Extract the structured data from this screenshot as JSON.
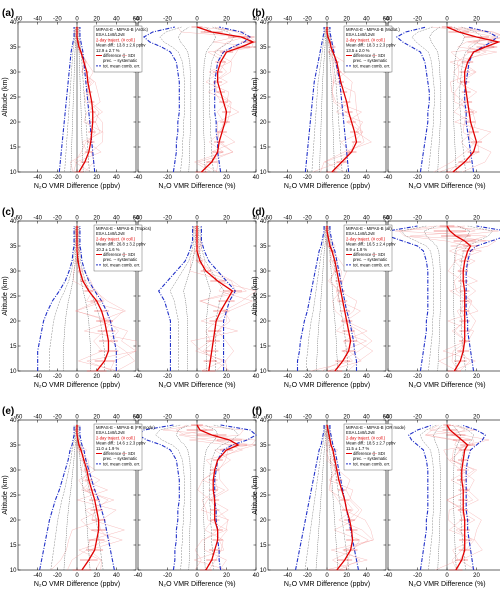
{
  "chart_data": [
    {
      "panel": "(a)",
      "type": "line",
      "legend": [
        "MIPAS-E - MIPAS-B (Arctic)",
        "ESA L1v8/L2v8",
        "2-day traject. (# coll.)",
        "Mean diff.: 13.8 ± 2.6 ppbv",
        "12.9 ± 2.7 %"
      ],
      "left": {
        "altitude": [
          10,
          12,
          14,
          16,
          18,
          20,
          22,
          24,
          26,
          28,
          30,
          32,
          34,
          35,
          36,
          37,
          38,
          39
        ],
        "difference": [
          2,
          8,
          12,
          14,
          15,
          16,
          16,
          15,
          13,
          11,
          10,
          7,
          4,
          2,
          1,
          0,
          0,
          0
        ],
        "tot_err": [
          18,
          17,
          16,
          15,
          14,
          13,
          12,
          11,
          10,
          9,
          8,
          7,
          6,
          5,
          4,
          3,
          3,
          3
        ]
      },
      "right": {
        "altitude": [
          10,
          12,
          14,
          16,
          18,
          20,
          22,
          24,
          26,
          28,
          30,
          32,
          34,
          35,
          36,
          37,
          38,
          39
        ],
        "difference": [
          3,
          10,
          14,
          15,
          17,
          19,
          20,
          18,
          16,
          14,
          14,
          16,
          20,
          30,
          38,
          30,
          10,
          0
        ],
        "tot_err": [
          16,
          15,
          14,
          14,
          13,
          13,
          12,
          12,
          12,
          12,
          13,
          14,
          18,
          24,
          32,
          36,
          30,
          15
        ]
      }
    },
    {
      "panel": "(b)",
      "type": "line",
      "legend": [
        "MIPAS-E - MIPAS-B (Midlat.)",
        "ESA L1v8/L2v8",
        "2-day traject. (# coll.)",
        "Mean diff.: 18.3 ± 2.3 ppbv",
        "13.5 ± 2.0 %"
      ],
      "left": {
        "altitude": [
          10,
          12,
          14,
          16,
          18,
          20,
          22,
          24,
          26,
          28,
          30,
          32,
          34,
          35,
          36,
          37,
          38,
          39
        ],
        "difference": [
          5,
          15,
          25,
          30,
          28,
          25,
          22,
          20,
          17,
          14,
          12,
          10,
          6,
          4,
          3,
          1,
          0,
          0
        ],
        "tot_err": [
          22,
          21,
          20,
          19,
          18,
          17,
          16,
          15,
          14,
          13,
          11,
          9,
          7,
          6,
          5,
          4,
          3,
          3
        ]
      },
      "right": {
        "altitude": [
          10,
          12,
          14,
          16,
          18,
          20,
          22,
          24,
          26,
          28,
          30,
          32,
          34,
          35,
          36,
          37,
          38,
          39
        ],
        "difference": [
          4,
          12,
          18,
          20,
          18,
          16,
          15,
          14,
          13,
          12,
          12,
          14,
          18,
          26,
          35,
          20,
          8,
          0
        ],
        "tot_err": [
          18,
          17,
          16,
          15,
          14,
          13,
          13,
          12,
          12,
          13,
          14,
          15,
          18,
          24,
          30,
          34,
          28,
          14
        ]
      }
    },
    {
      "panel": "(c)",
      "type": "line",
      "legend": [
        "MIPAS-E - MIPAS-B (Tropics)",
        "ESA L1v8/L2v8",
        "2-day traject. (# coll.)",
        "Mean diff.: 26.8 ± 3.2 ppbv",
        "10.3 ± 1.6 %"
      ],
      "left": {
        "altitude": [
          10,
          12,
          14,
          16,
          18,
          20,
          22,
          24,
          26,
          28,
          30,
          32,
          34,
          35,
          36,
          37,
          38,
          39
        ],
        "difference": [
          20,
          28,
          32,
          32,
          30,
          28,
          25,
          20,
          12,
          6,
          3,
          1,
          0,
          0,
          0,
          0,
          0,
          0
        ],
        "tot_err": [
          40,
          40,
          40,
          38,
          36,
          34,
          30,
          25,
          18,
          12,
          8,
          5,
          4,
          3,
          3,
          3,
          3,
          3
        ]
      },
      "right": {
        "altitude": [
          10,
          12,
          14,
          16,
          18,
          20,
          22,
          24,
          26,
          28,
          30,
          32,
          34,
          35,
          36,
          37,
          38,
          39
        ],
        "difference": [
          8,
          9,
          10,
          11,
          12,
          13,
          16,
          20,
          24,
          14,
          6,
          2,
          0,
          0,
          0,
          0,
          0,
          0
        ],
        "tot_err": [
          18,
          18,
          18,
          18,
          18,
          18,
          20,
          22,
          26,
          20,
          14,
          8,
          5,
          4,
          3,
          3,
          3,
          3
        ]
      }
    },
    {
      "panel": "(d)",
      "type": "line",
      "legend": [
        "MIPAS-E - MIPAS-B (all)",
        "ESA L1v8/L2v8",
        "2-day traject. (# coll.)",
        "Mean diff.: 16.5 ± 2.4 ppbv",
        "9.9 ± 1.8 %"
      ],
      "left": {
        "altitude": [
          10,
          12,
          14,
          16,
          18,
          20,
          22,
          24,
          26,
          28,
          30,
          32,
          34,
          35,
          36,
          37,
          38,
          39
        ],
        "difference": [
          8,
          16,
          22,
          24,
          22,
          20,
          18,
          16,
          14,
          12,
          10,
          8,
          5,
          3,
          2,
          1,
          0,
          0
        ],
        "tot_err": [
          30,
          30,
          28,
          27,
          25,
          23,
          20,
          18,
          16,
          14,
          12,
          10,
          8,
          6,
          5,
          4,
          3,
          3
        ]
      },
      "right": {
        "altitude": [
          10,
          12,
          14,
          16,
          18,
          20,
          22,
          24,
          26,
          28,
          30,
          32,
          34,
          35,
          36,
          37,
          38,
          39
        ],
        "difference": [
          5,
          9,
          11,
          12,
          12,
          12,
          12,
          12,
          12,
          11,
          11,
          12,
          14,
          16,
          12,
          6,
          2,
          0
        ],
        "tot_err": [
          18,
          17,
          16,
          15,
          14,
          14,
          13,
          13,
          13,
          13,
          13,
          14,
          16,
          20,
          30,
          40,
          44,
          20
        ]
      }
    },
    {
      "panel": "(e)",
      "type": "line",
      "legend": [
        "MIPAS-E - MIPAS-B (FR mode)",
        "ESA L1v8/L2v8",
        "2-day traject. (# coll.)",
        "Mean diff.: 14.6 ± 2.3 ppbv",
        "11.0 ± 1.9 %"
      ],
      "left": {
        "altitude": [
          10,
          12,
          14,
          16,
          18,
          20,
          22,
          24,
          26,
          28,
          30,
          32,
          34,
          35,
          36,
          37,
          38,
          39
        ],
        "difference": [
          5,
          12,
          18,
          20,
          22,
          22,
          20,
          18,
          15,
          12,
          10,
          7,
          4,
          2,
          1,
          0,
          0,
          0
        ],
        "tot_err": [
          38,
          36,
          34,
          32,
          30,
          28,
          25,
          22,
          18,
          15,
          12,
          9,
          7,
          5,
          4,
          3,
          3,
          3
        ]
      },
      "right": {
        "altitude": [
          10,
          12,
          14,
          16,
          18,
          20,
          22,
          24,
          26,
          28,
          30,
          32,
          34,
          35,
          36,
          37,
          38,
          39
        ],
        "difference": [
          6,
          10,
          12,
          14,
          14,
          12,
          12,
          12,
          11,
          11,
          12,
          14,
          20,
          28,
          22,
          10,
          2,
          0
        ],
        "tot_err": [
          16,
          15,
          15,
          14,
          14,
          13,
          13,
          12,
          12,
          12,
          13,
          14,
          18,
          24,
          34,
          40,
          36,
          16
        ]
      }
    },
    {
      "panel": "(f)",
      "type": "line",
      "legend": [
        "MIPAS-E - MIPAS-B (OR mode)",
        "ESA L1v8/L2v8",
        "2-day traject. (# coll.)",
        "Mean diff.: 18.5 ± 2.7 ppbv",
        "11.5 ± 1.7 %"
      ],
      "left": {
        "altitude": [
          10,
          12,
          14,
          16,
          18,
          20,
          22,
          24,
          26,
          28,
          30,
          32,
          34,
          35,
          36,
          37,
          38,
          39
        ],
        "difference": [
          10,
          18,
          24,
          26,
          25,
          23,
          20,
          18,
          15,
          12,
          10,
          8,
          6,
          4,
          3,
          2,
          1,
          0
        ],
        "tot_err": [
          32,
          30,
          28,
          26,
          24,
          22,
          20,
          18,
          16,
          14,
          12,
          10,
          8,
          6,
          5,
          4,
          3,
          3
        ]
      },
      "right": {
        "altitude": [
          10,
          12,
          14,
          16,
          18,
          20,
          22,
          24,
          26,
          28,
          30,
          32,
          34,
          35,
          36,
          37,
          38,
          39
        ],
        "difference": [
          6,
          10,
          12,
          12,
          12,
          12,
          11,
          11,
          11,
          10,
          10,
          11,
          12,
          14,
          10,
          6,
          2,
          0
        ],
        "tot_err": [
          18,
          17,
          16,
          15,
          14,
          14,
          13,
          13,
          13,
          13,
          13,
          14,
          16,
          20,
          24,
          26,
          20,
          10
        ]
      }
    }
  ],
  "axes": {
    "ylabel": "Altitude (km)",
    "xlabel_left": "N₂O VMR Difference (ppbv)",
    "xlabel_right": "N₂O VMR Difference (%)",
    "ylim": [
      10,
      40
    ],
    "xlim_left": [
      -60,
      60
    ],
    "xlim_right": [
      -40,
      40
    ],
    "yticks": [
      10,
      15,
      20,
      25,
      30,
      35,
      40
    ],
    "xticks_left": [
      -40,
      -20,
      0,
      20,
      40
    ],
    "xticks_right": [
      -40,
      -20,
      0,
      20,
      40
    ],
    "xticks_top_left": [
      -60,
      -40,
      -20,
      0,
      20,
      40,
      60
    ],
    "xticks_top_right": [
      -40,
      -20,
      0,
      20,
      40
    ]
  },
  "legend_common": [
    "difference (",
    ") ",
    "SDI",
    "prec. -- systematic",
    "tot. mean comb. err."
  ],
  "colors": {
    "difference": "#e00000",
    "sdi": "#f08a8a",
    "tot_err": "#2030c8",
    "precision": "#3a3a3a",
    "systematic": "#8a8a8a"
  }
}
